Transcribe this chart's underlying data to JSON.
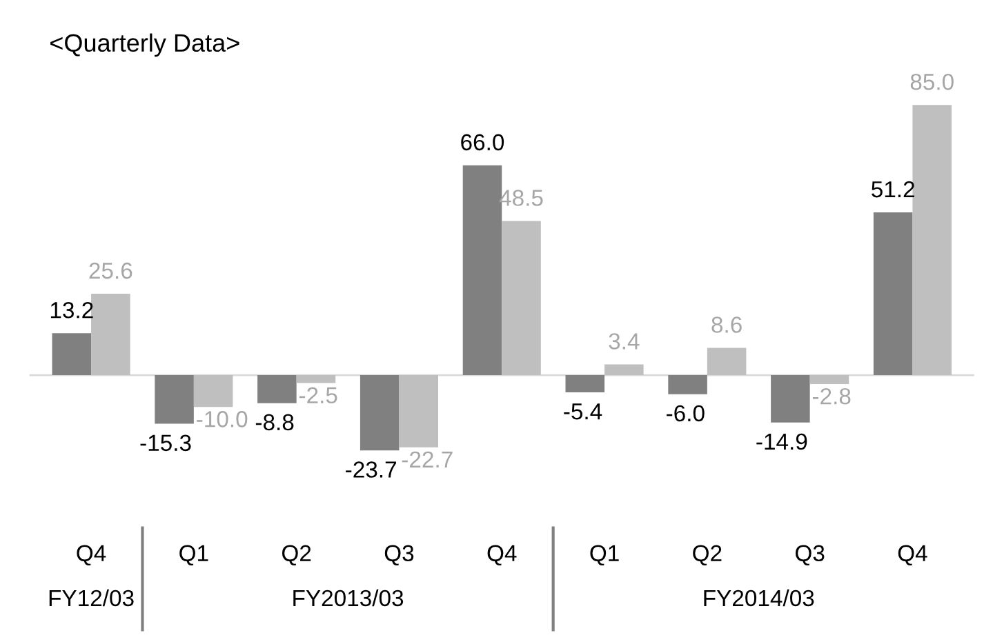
{
  "chart_data": {
    "type": "bar",
    "title": "<Quarterly Data>",
    "categories": [
      "Q4",
      "Q1",
      "Q2",
      "Q3",
      "Q4",
      "Q1",
      "Q2",
      "Q3",
      "Q4"
    ],
    "annotations": [
      "FY12/03",
      "FY2013/03",
      "FY2014/03"
    ],
    "series": [
      {
        "color": "#808080",
        "values": [
          13.2,
          -15.3,
          -8.8,
          -23.7,
          66.0,
          -5.4,
          -6.0,
          -14.9,
          51.2
        ],
        "value_labels": [
          "13.2",
          "-15.3",
          "-8.8",
          "-23.7",
          "66.0",
          "-5.4",
          "-6.0",
          "-14.9",
          "51.2"
        ]
      },
      {
        "color": "#bfbfbf",
        "values": [
          25.6,
          -10.0,
          -2.5,
          -22.7,
          48.5,
          3.4,
          8.6,
          -2.8,
          85.0
        ],
        "value_labels": [
          "25.6",
          "-10.0",
          "-2.5",
          "-22.7",
          "48.5",
          "3.4",
          "8.6",
          "-2.8",
          "85.0"
        ]
      }
    ],
    "grid": false,
    "legend": false
  }
}
